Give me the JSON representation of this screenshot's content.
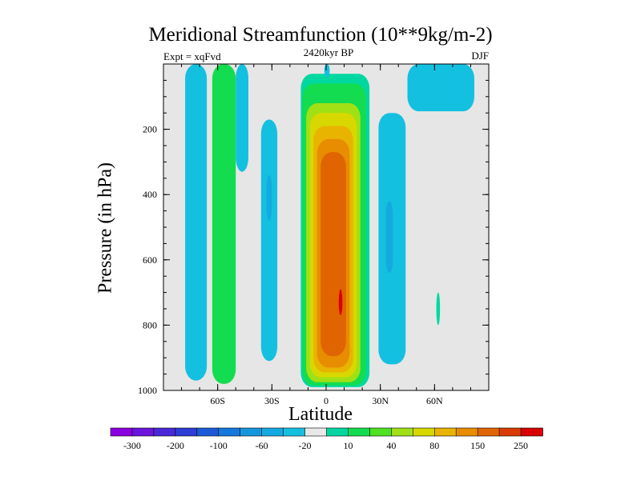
{
  "chart_data": {
    "type": "heatmap",
    "title": "Meridional Streamfunction (10**9kg/m-2)",
    "subtitle_left": "Expt = xqFvd",
    "subtitle_center": "2420kyr BP",
    "subtitle_right": "DJF",
    "xlabel": "Latitude",
    "ylabel": "Pressure (in hPa)",
    "xlim": [
      -90,
      90
    ],
    "ylim": [
      1000,
      0
    ],
    "x_ticks": [
      {
        "value": -60,
        "label": "60S"
      },
      {
        "value": -30,
        "label": "30S"
      },
      {
        "value": 0,
        "label": "0"
      },
      {
        "value": 30,
        "label": "30N"
      },
      {
        "value": 60,
        "label": "60N"
      }
    ],
    "y_ticks": [
      {
        "value": 200,
        "label": "200"
      },
      {
        "value": 400,
        "label": "400"
      },
      {
        "value": 600,
        "label": "600"
      },
      {
        "value": 800,
        "label": "800"
      },
      {
        "value": 1000,
        "label": "1000"
      }
    ],
    "background_color": "#e6e6e6",
    "colorbar": {
      "colors": [
        "#8a00e0",
        "#6a14dc",
        "#4a28d8",
        "#2c3cd4",
        "#1a5ad8",
        "#1478dc",
        "#1496dc",
        "#14aae0",
        "#14c0e0",
        "#e8e8e8",
        "#00d8a0",
        "#14dc50",
        "#50e024",
        "#a0e014",
        "#d8d800",
        "#e8b400",
        "#e88c00",
        "#e06400",
        "#d83c00",
        "#d80000"
      ],
      "labels": [
        {
          "boundary": 1,
          "text": "-300"
        },
        {
          "boundary": 3,
          "text": "-200"
        },
        {
          "boundary": 5,
          "text": "-100"
        },
        {
          "boundary": 7,
          "text": "-60"
        },
        {
          "boundary": 9,
          "text": "-20"
        },
        {
          "boundary": 11,
          "text": "10"
        },
        {
          "boundary": 13,
          "text": "40"
        },
        {
          "boundary": 15,
          "text": "80"
        },
        {
          "boundary": 17,
          "text": "150"
        },
        {
          "boundary": 19,
          "text": "250"
        }
      ]
    },
    "regions": [
      {
        "name": "blue-cell-60s-outer",
        "level": 8,
        "lat": [
          -78,
          -66
        ],
        "p": [
          0,
          970
        ],
        "top_taper": 0
      },
      {
        "name": "green-cell-60s",
        "level": 11,
        "lat": [
          -63,
          -50
        ],
        "p": [
          0,
          980
        ],
        "top_taper": 0
      },
      {
        "name": "blue-strip-50s",
        "level": 8,
        "lat": [
          -50,
          -43
        ],
        "p": [
          0,
          330
        ],
        "top_taper": 0
      },
      {
        "name": "blue-cell-30s",
        "level": 8,
        "lat": [
          -36,
          -27
        ],
        "p": [
          170,
          910
        ],
        "top_taper": 0
      },
      {
        "name": "blue-core-30s",
        "level": 7,
        "lat": [
          -33,
          -30
        ],
        "p": [
          340,
          480
        ],
        "top_taper": 0
      },
      {
        "name": "hadley-10",
        "level": 10,
        "lat": [
          -14,
          24
        ],
        "p": [
          30,
          990
        ],
        "top_taper": 0
      },
      {
        "name": "hadley-40",
        "level": 11,
        "lat": [
          -13,
          22
        ],
        "p": [
          60,
          985
        ],
        "top_taper": 0
      },
      {
        "name": "hadley-80",
        "level": 13,
        "lat": [
          -11,
          19
        ],
        "p": [
          120,
          975
        ],
        "top_taper": 0
      },
      {
        "name": "hadley-100",
        "level": 14,
        "lat": [
          -9,
          17
        ],
        "p": [
          150,
          960
        ],
        "top_taper": 0
      },
      {
        "name": "hadley-120",
        "level": 15,
        "lat": [
          -7,
          15
        ],
        "p": [
          190,
          945
        ],
        "top_taper": 0
      },
      {
        "name": "hadley-150",
        "level": 16,
        "lat": [
          -5,
          13
        ],
        "p": [
          230,
          930
        ],
        "top_taper": 0
      },
      {
        "name": "hadley-200",
        "level": 17,
        "lat": [
          -3,
          11
        ],
        "p": [
          270,
          895
        ],
        "top_taper": 0
      },
      {
        "name": "hadley-core",
        "level": 19,
        "lat": [
          7,
          9
        ],
        "p": [
          690,
          770
        ],
        "top_taper": 0
      },
      {
        "name": "blue-cell-30n",
        "level": 8,
        "lat": [
          29,
          44
        ],
        "p": [
          150,
          920
        ],
        "top_taper": 0
      },
      {
        "name": "blue-core-30n",
        "level": 7,
        "lat": [
          33,
          37
        ],
        "p": [
          420,
          640
        ],
        "top_taper": 0
      },
      {
        "name": "blue-top-45n",
        "level": 8,
        "lat": [
          45,
          82
        ],
        "p": [
          0,
          145
        ],
        "top_taper": 0
      },
      {
        "name": "blue-top-0",
        "level": 8,
        "lat": [
          -1,
          2
        ],
        "p": [
          0,
          40
        ],
        "top_taper": 0
      },
      {
        "name": "teal-patch-60n",
        "level": 10,
        "lat": [
          61,
          63
        ],
        "p": [
          700,
          800
        ],
        "top_taper": 0
      }
    ]
  }
}
